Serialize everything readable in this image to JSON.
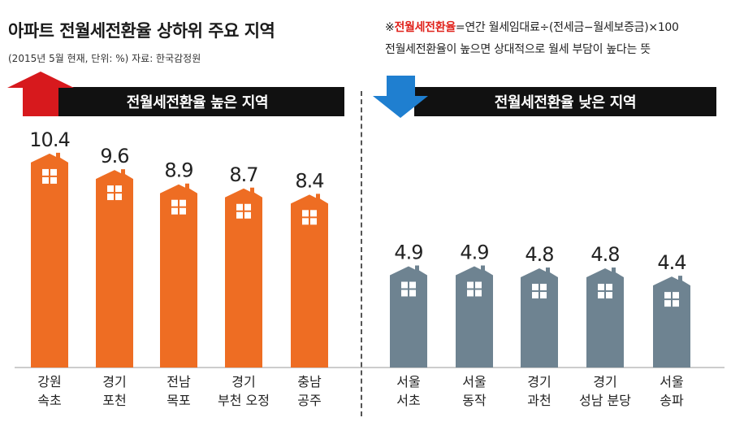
{
  "title": "아파트 전월세전환율 상하위 주요 지역",
  "subtitle": "(2015년 5월 현재, 단위: %) 자료: 한국감정원",
  "note": {
    "prefix": "※",
    "term": "전월세전환율",
    "formula": "=연간 월세임대료÷(전세금−월세보증금)×100",
    "line2": "전월세전환율이 높으면 상대적으로 월세 부담이 높다는 뜻"
  },
  "banners": {
    "high": "전월세전환율 높은 지역",
    "low": "전월세전환율 낮은 지역"
  },
  "colors": {
    "high": "#ee6d23",
    "low": "#6e8391",
    "arrow_up": "#d7191d",
    "arrow_down": "#1f7fd0",
    "banner": "#111111"
  },
  "icons": {
    "high_group": "arrow-up-icon",
    "low_group": "arrow-down-icon",
    "bar_cap": "house-icon"
  },
  "chart_data": [
    {
      "type": "bar",
      "group": "높은 지역",
      "categories": [
        [
          "강원",
          "속초"
        ],
        [
          "경기",
          "포천"
        ],
        [
          "전남",
          "목포"
        ],
        [
          "경기",
          "부천 오정"
        ],
        [
          "충남",
          "공주"
        ]
      ],
      "values": [
        10.4,
        9.6,
        8.9,
        8.7,
        8.4
      ],
      "value_labels": [
        "10.4",
        "9.6",
        "8.9",
        "8.7",
        "8.4"
      ],
      "ylim": [
        0,
        11
      ]
    },
    {
      "type": "bar",
      "group": "낮은 지역",
      "categories": [
        [
          "서울",
          "서초"
        ],
        [
          "서울",
          "동작"
        ],
        [
          "경기",
          "과천"
        ],
        [
          "경기",
          "성남 분당"
        ],
        [
          "서울",
          "송파"
        ]
      ],
      "values": [
        4.9,
        4.9,
        4.8,
        4.8,
        4.4
      ],
      "value_labels": [
        "4.9",
        "4.9",
        "4.8",
        "4.8",
        "4.4"
      ],
      "ylim": [
        0,
        11
      ]
    }
  ]
}
